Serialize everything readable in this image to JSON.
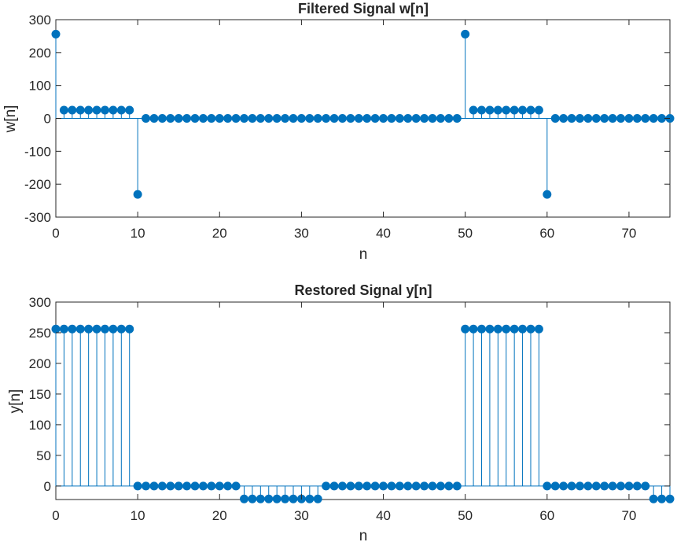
{
  "chart_data": [
    {
      "type": "stem",
      "title": "Filtered Signal w[n]",
      "xlabel": "n",
      "ylabel": "w[n]",
      "xlim": [
        0,
        75
      ],
      "ylim": [
        -300,
        300
      ],
      "xticks": [
        0,
        10,
        20,
        30,
        40,
        50,
        60,
        70
      ],
      "yticks": [
        -300,
        -200,
        -100,
        0,
        100,
        200,
        300
      ],
      "grid": false,
      "color": "#0072BD",
      "x": [
        0,
        1,
        2,
        3,
        4,
        5,
        6,
        7,
        8,
        9,
        10,
        11,
        12,
        13,
        14,
        15,
        16,
        17,
        18,
        19,
        20,
        21,
        22,
        23,
        24,
        25,
        26,
        27,
        28,
        29,
        30,
        31,
        32,
        33,
        34,
        35,
        36,
        37,
        38,
        39,
        40,
        41,
        42,
        43,
        44,
        45,
        46,
        47,
        48,
        49,
        50,
        51,
        52,
        53,
        54,
        55,
        56,
        57,
        58,
        59,
        60,
        61,
        62,
        63,
        64,
        65,
        66,
        67,
        68,
        69,
        70,
        71,
        72,
        73,
        74,
        75
      ],
      "values": [
        256,
        25,
        25,
        25,
        25,
        25,
        25,
        25,
        25,
        25,
        -231,
        0,
        0,
        0,
        0,
        0,
        0,
        0,
        0,
        0,
        0,
        0,
        0,
        0,
        0,
        0,
        0,
        0,
        0,
        0,
        0,
        0,
        0,
        0,
        0,
        0,
        0,
        0,
        0,
        0,
        0,
        0,
        0,
        0,
        0,
        0,
        0,
        0,
        0,
        0,
        256,
        25,
        25,
        25,
        25,
        25,
        25,
        25,
        25,
        25,
        -231,
        0,
        0,
        0,
        0,
        0,
        0,
        0,
        0,
        0,
        0,
        0,
        0,
        0,
        0,
        0
      ]
    },
    {
      "type": "stem",
      "title": "Restored Signal y[n]",
      "xlabel": "n",
      "ylabel": "y[n]",
      "xlim": [
        0,
        75
      ],
      "ylim": [
        -22,
        300
      ],
      "xticks": [
        0,
        10,
        20,
        30,
        40,
        50,
        60,
        70
      ],
      "yticks": [
        0,
        50,
        100,
        150,
        200,
        250,
        300
      ],
      "grid": false,
      "color": "#0072BD",
      "x": [
        0,
        1,
        2,
        3,
        4,
        5,
        6,
        7,
        8,
        9,
        10,
        11,
        12,
        13,
        14,
        15,
        16,
        17,
        18,
        19,
        20,
        21,
        22,
        23,
        24,
        25,
        26,
        27,
        28,
        29,
        30,
        31,
        32,
        33,
        34,
        35,
        36,
        37,
        38,
        39,
        40,
        41,
        42,
        43,
        44,
        45,
        46,
        47,
        48,
        49,
        50,
        51,
        52,
        53,
        54,
        55,
        56,
        57,
        58,
        59,
        60,
        61,
        62,
        63,
        64,
        65,
        66,
        67,
        68,
        69,
        70,
        71,
        72,
        73,
        74,
        75
      ],
      "values": [
        256,
        256,
        256,
        256,
        256,
        256,
        256,
        256,
        256,
        256,
        0,
        0,
        0,
        0,
        0,
        0,
        0,
        0,
        0,
        0,
        0,
        0,
        0,
        -21,
        -21,
        -21,
        -21,
        -21,
        -21,
        -21,
        -21,
        -21,
        -21,
        0,
        0,
        0,
        0,
        0,
        0,
        0,
        0,
        0,
        0,
        0,
        0,
        0,
        0,
        0,
        0,
        0,
        256,
        256,
        256,
        256,
        256,
        256,
        256,
        256,
        256,
        256,
        0,
        0,
        0,
        0,
        0,
        0,
        0,
        0,
        0,
        0,
        0,
        0,
        0,
        -21,
        -21,
        -21
      ]
    }
  ]
}
